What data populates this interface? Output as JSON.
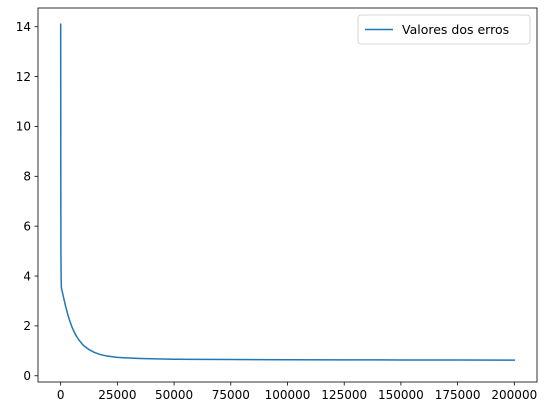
{
  "chart_data": {
    "type": "line",
    "title": "",
    "xlabel": "",
    "ylabel": "",
    "xlim": [
      -10000,
      210000
    ],
    "ylim": [
      -0.25,
      14.75
    ],
    "x_ticks": [
      0,
      25000,
      50000,
      75000,
      100000,
      125000,
      150000,
      175000,
      200000
    ],
    "y_ticks": [
      0,
      2,
      4,
      6,
      8,
      10,
      12,
      14
    ],
    "x_tick_labels": [
      "0",
      "25000",
      "50000",
      "75000",
      "100000",
      "125000",
      "150000",
      "175000",
      "200000"
    ],
    "y_tick_labels": [
      "0",
      "2",
      "4",
      "6",
      "8",
      "10",
      "12",
      "14"
    ],
    "grid": false,
    "legend_position": "top-right",
    "series": [
      {
        "name": "Valores dos erros",
        "color": "#1f77b4",
        "x": [
          0,
          50,
          100,
          200,
          300,
          500,
          1000,
          2000,
          3000,
          4000,
          5000,
          6000,
          7000,
          8000,
          10000,
          12500,
          15000,
          17500,
          20000,
          25000,
          30000,
          35000,
          40000,
          50000,
          60000,
          75000,
          100000,
          125000,
          150000,
          175000,
          200000
        ],
        "y": [
          14.1,
          8.0,
          5.0,
          3.9,
          3.55,
          3.45,
          3.25,
          2.85,
          2.5,
          2.2,
          1.95,
          1.75,
          1.58,
          1.44,
          1.22,
          1.05,
          0.93,
          0.85,
          0.8,
          0.74,
          0.71,
          0.69,
          0.68,
          0.665,
          0.658,
          0.65,
          0.643,
          0.638,
          0.634,
          0.63,
          0.627
        ]
      }
    ]
  }
}
